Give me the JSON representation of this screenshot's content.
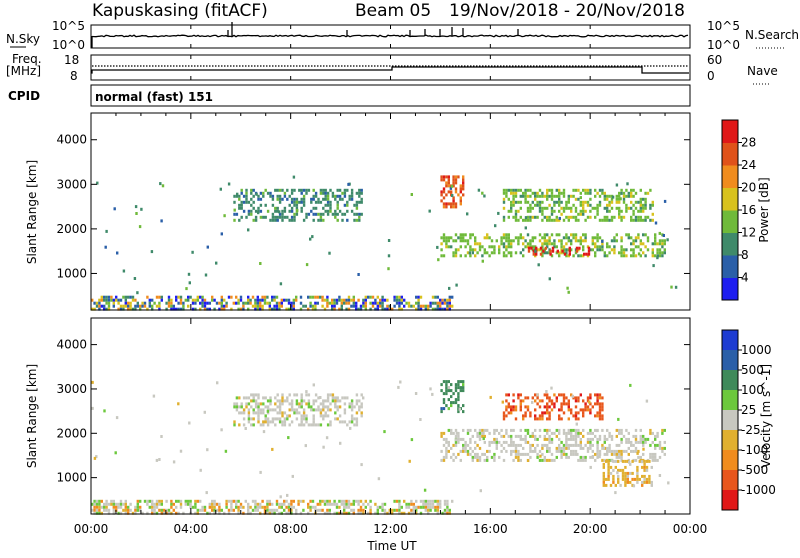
{
  "header": {
    "site": "Kapuskasing (fitACF)",
    "beam": "Beam 05",
    "dates": "19/Nov/2018 - 20/Nov/2018"
  },
  "nsky_panel": {
    "left_label": "N.Sky",
    "right_label": "N.Search",
    "left_ticks": [
      "10^5",
      "10^0"
    ],
    "right_ticks": [
      "10^5",
      "10^0"
    ]
  },
  "freq_panel": {
    "left_label_1": "Freq.",
    "left_label_2": "[MHz]",
    "right_label": "Nave",
    "left_ticks": [
      "18",
      "8"
    ],
    "right_ticks": [
      "60",
      "0"
    ]
  },
  "cpid": {
    "label": "CPID",
    "mode": "normal (fast) 151"
  },
  "x_axis": {
    "title": "Time UT",
    "ticks": [
      "00:00",
      "04:00",
      "08:00",
      "12:00",
      "16:00",
      "20:00",
      "00:00"
    ]
  },
  "colors": {
    "power": [
      "#1e1ef0",
      "#2a5fa8",
      "#3f8a6a",
      "#6fba3a",
      "#d8c21e",
      "#f08c1e",
      "#e0521a",
      "#e01818"
    ],
    "velocity": [
      "#1e3cd2",
      "#2a5fa8",
      "#3f8a5a",
      "#6cc83c",
      "#c8c8c0",
      "#e0b030",
      "#f08c1e",
      "#e8561c",
      "#e01818"
    ]
  },
  "chart_data": [
    {
      "type": "heatmap",
      "title": "",
      "xlabel": "",
      "ylabel": "Slant Range [km]",
      "x_range": [
        "00:00",
        "00:00"
      ],
      "y_ticks": [
        1000,
        2000,
        3000,
        4000
      ],
      "ylim": [
        180,
        4600
      ],
      "colorbar": {
        "label": "Power [dB]",
        "ticks": [
          4,
          8,
          12,
          16,
          20,
          24,
          28
        ],
        "range": [
          0,
          32
        ]
      },
      "regions": [
        {
          "t_start": 0.0,
          "t_end": 14.5,
          "r_min": 200,
          "r_max": 500,
          "level": "low-mixed"
        },
        {
          "t_start": 5.7,
          "t_end": 10.8,
          "r_min": 2200,
          "r_max": 2900,
          "level": 8
        },
        {
          "t_start": 14.0,
          "t_end": 23.0,
          "r_min": 1400,
          "r_max": 1900,
          "level": 12
        },
        {
          "t_start": 14.0,
          "t_end": 14.9,
          "r_min": 2500,
          "r_max": 3200,
          "level": 24
        },
        {
          "t_start": 17.5,
          "t_end": 20.0,
          "r_min": 1400,
          "r_max": 1600,
          "level": 30
        },
        {
          "t_start": 16.5,
          "t_end": 22.5,
          "r_min": 2200,
          "r_max": 2900,
          "level": 12
        }
      ]
    },
    {
      "type": "heatmap",
      "title": "",
      "xlabel": "Time UT",
      "ylabel": "Slant Range [km]",
      "x_range": [
        "00:00",
        "00:00"
      ],
      "y_ticks": [
        1000,
        2000,
        3000,
        4000
      ],
      "ylim": [
        180,
        4600
      ],
      "colorbar": {
        "label": "Velocity [m s^-1]",
        "ticks": [
          1000,
          500,
          100,
          25,
          -25,
          -100,
          -500,
          -1000
        ]
      },
      "regions": [
        {
          "t_start": 0.0,
          "t_end": 14.5,
          "r_min": 200,
          "r_max": 500,
          "level": "low-mixed"
        },
        {
          "t_start": 5.7,
          "t_end": 10.8,
          "r_min": 2200,
          "r_max": 2900,
          "level": 0
        },
        {
          "t_start": 14.0,
          "t_end": 23.0,
          "r_min": 1400,
          "r_max": 2100,
          "level": 0
        },
        {
          "t_start": 14.0,
          "t_end": 14.9,
          "r_min": 2500,
          "r_max": 3200,
          "level": 100
        },
        {
          "t_start": 16.5,
          "t_end": 20.5,
          "r_min": 2300,
          "r_max": 2900,
          "level": -500
        },
        {
          "t_start": 20.5,
          "t_end": 22.5,
          "r_min": 800,
          "r_max": 1400,
          "level": -100
        }
      ]
    }
  ]
}
